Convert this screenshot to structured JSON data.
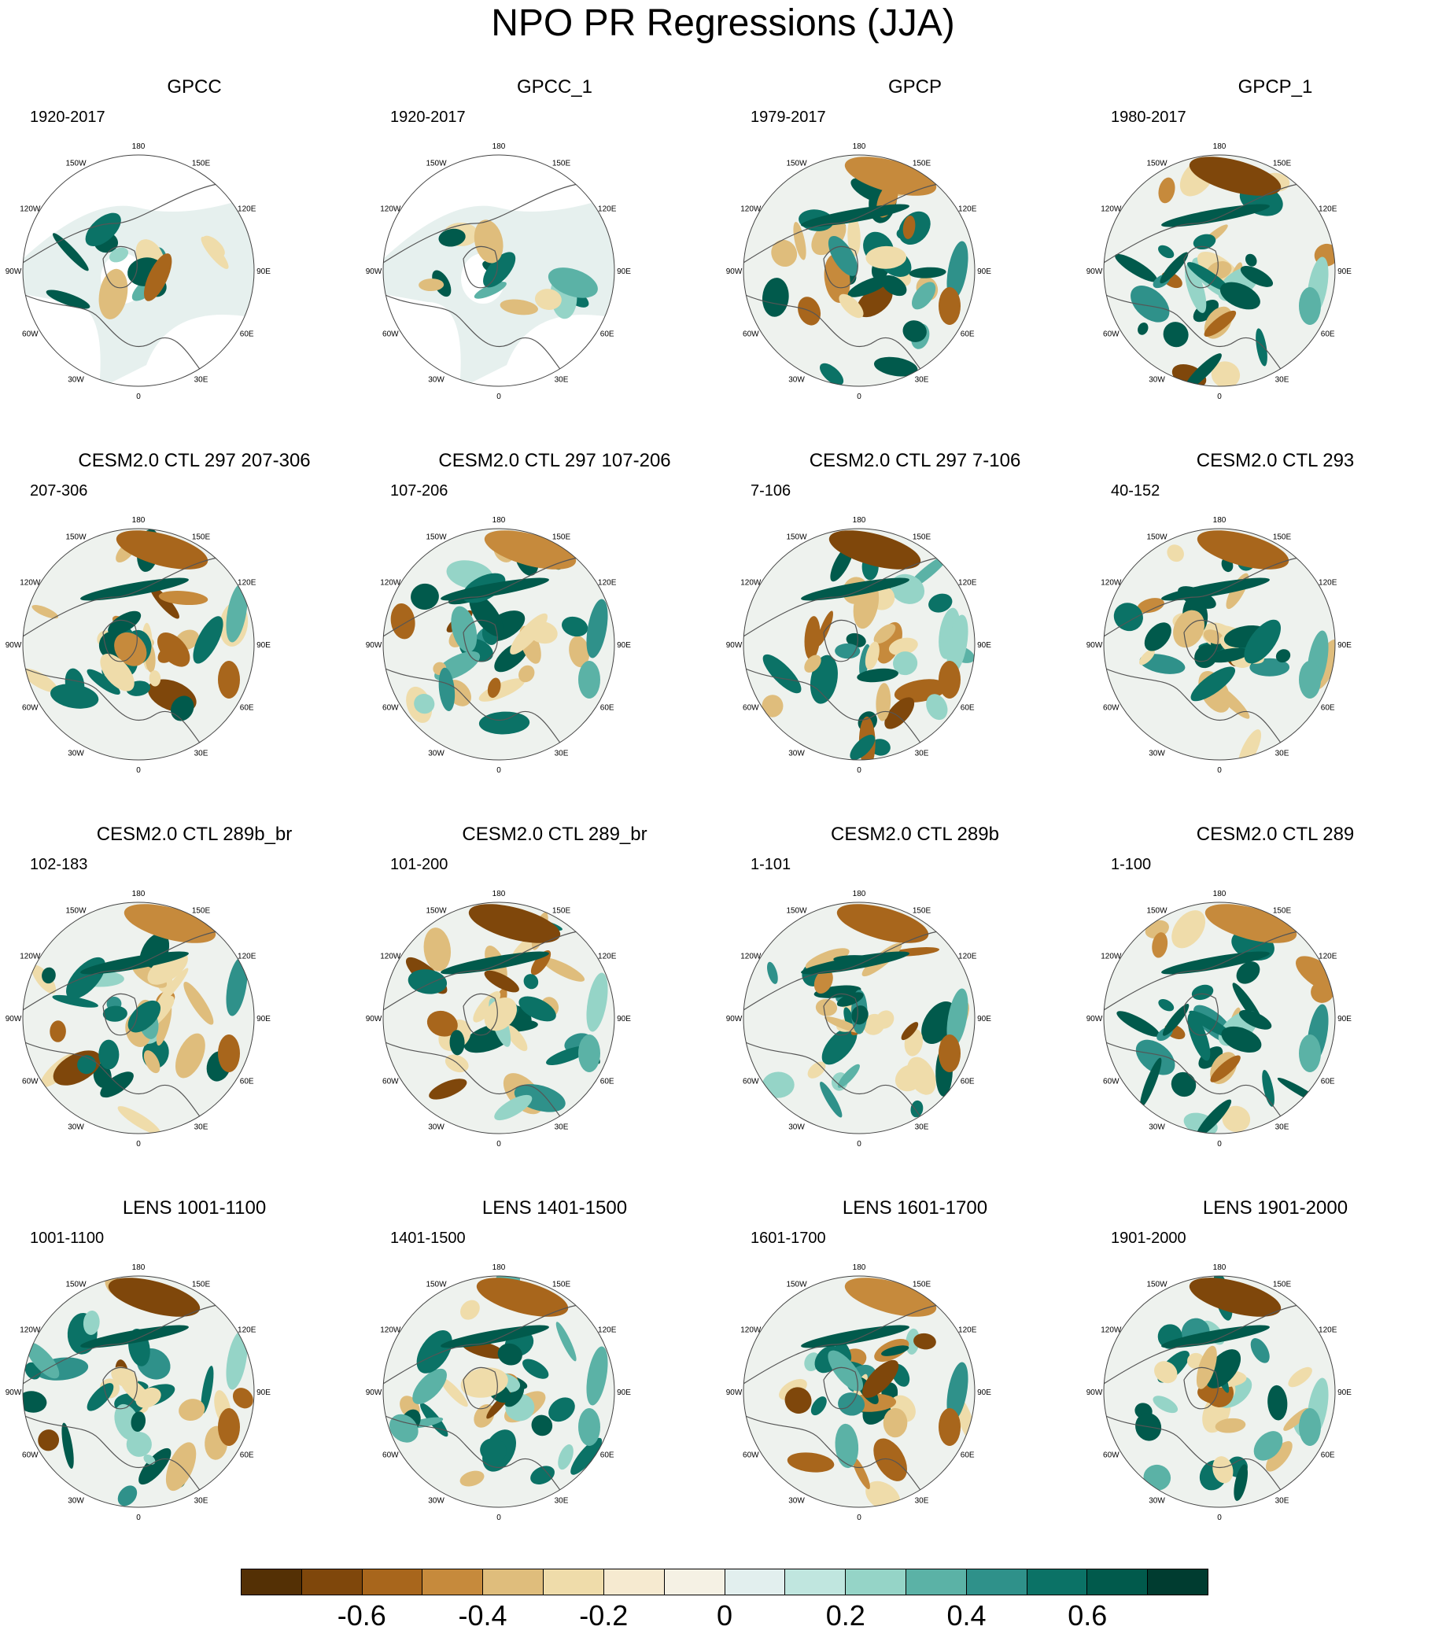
{
  "title": "NPO PR Regressions (JJA)",
  "longitude_labels": [
    "180",
    "150E",
    "120E",
    "90E",
    "60E",
    "30E",
    "0",
    "30W",
    "60W",
    "90W",
    "120W",
    "150W"
  ],
  "panels": [
    {
      "title": "GPCC",
      "period": "1920-2017",
      "observational_land_only": true
    },
    {
      "title": "GPCC_1",
      "period": "1920-2017",
      "observational_land_only": true
    },
    {
      "title": "GPCP",
      "period": "1979-2017",
      "observational_land_only": false
    },
    {
      "title": "GPCP_1",
      "period": "1980-2017",
      "observational_land_only": false
    },
    {
      "title": "CESM2.0 CTL 297 207-306",
      "period": "207-306",
      "observational_land_only": false
    },
    {
      "title": "CESM2.0 CTL 297 107-206",
      "period": "107-206",
      "observational_land_only": false
    },
    {
      "title": "CESM2.0 CTL 297 7-106",
      "period": "7-106",
      "observational_land_only": false
    },
    {
      "title": "CESM2.0 CTL 293",
      "period": "40-152",
      "observational_land_only": false
    },
    {
      "title": "CESM2.0 CTL 289b_br",
      "period": "102-183",
      "observational_land_only": false
    },
    {
      "title": "CESM2.0 CTL 289_br",
      "period": "101-200",
      "observational_land_only": false
    },
    {
      "title": "CESM2.0 CTL 289b",
      "period": "1-101",
      "observational_land_only": false
    },
    {
      "title": "CESM2.0 CTL 289",
      "period": "1-100",
      "observational_land_only": false
    },
    {
      "title": "LENS 1001-1100",
      "period": "1001-1100",
      "observational_land_only": false
    },
    {
      "title": "LENS 1401-1500",
      "period": "1401-1500",
      "observational_land_only": false
    },
    {
      "title": "LENS 1601-1700",
      "period": "1601-1700",
      "observational_land_only": false
    },
    {
      "title": "LENS 1901-2000",
      "period": "1901-2000",
      "observational_land_only": false
    }
  ],
  "colorbar": {
    "colors": [
      "#543005",
      "#7f470b",
      "#a8661c",
      "#c68a3c",
      "#dfbd7c",
      "#efdcaa",
      "#f6ead0",
      "#f5f1e4",
      "#e2efee",
      "#c0e6df",
      "#95d4c7",
      "#5bb2a6",
      "#2f918a",
      "#0b7266",
      "#015a4c",
      "#003c30"
    ],
    "tick_labels": [
      {
        "text": "-0.6",
        "boundary_index": 2
      },
      {
        "text": "-0.4",
        "boundary_index": 4
      },
      {
        "text": "-0.2",
        "boundary_index": 6
      },
      {
        "text": "0",
        "boundary_index": 8
      },
      {
        "text": "0.2",
        "boundary_index": 10
      },
      {
        "text": "0.4",
        "boundary_index": 12
      },
      {
        "text": "0.6",
        "boundary_index": 14
      }
    ]
  }
}
